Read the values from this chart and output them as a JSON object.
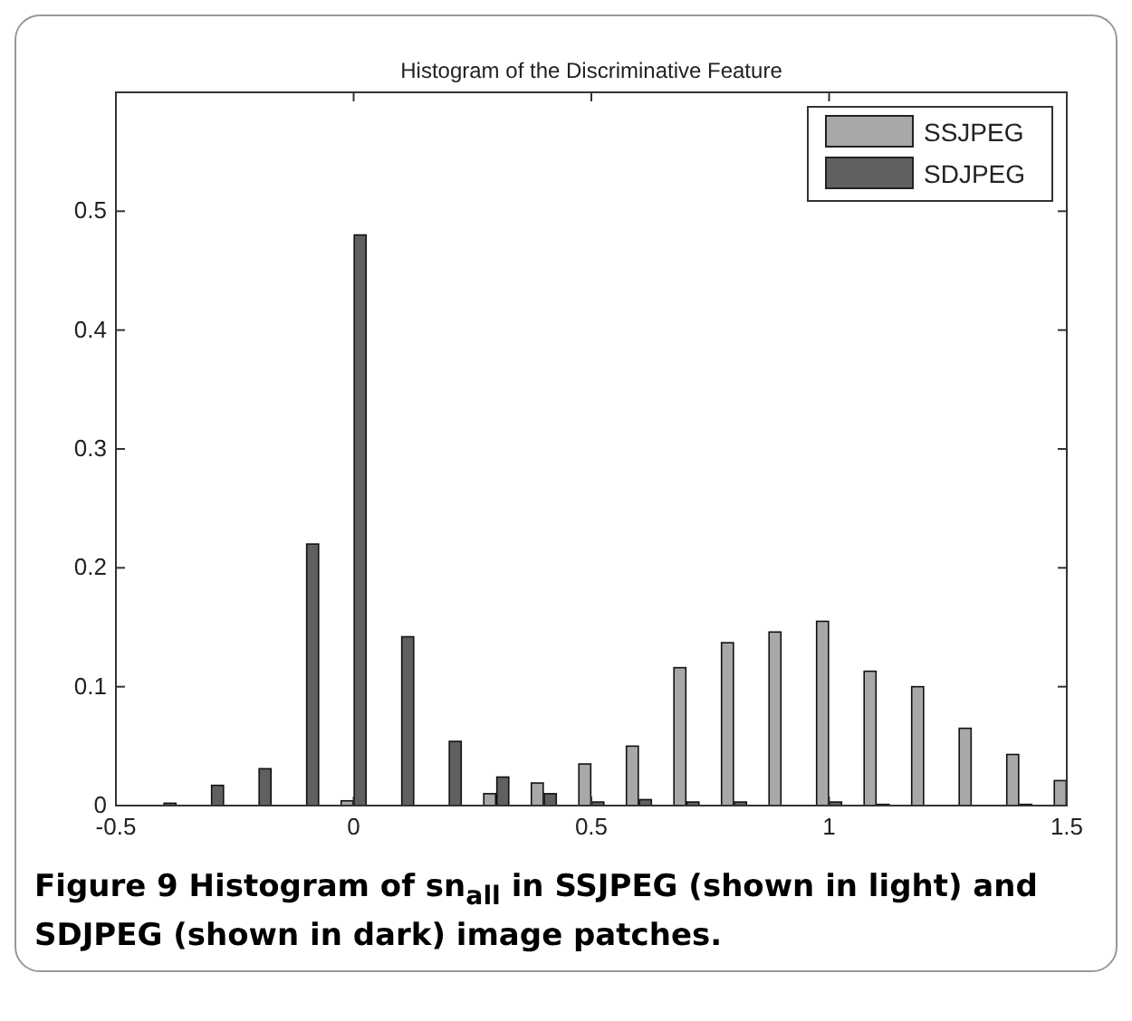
{
  "chart_data": {
    "type": "bar",
    "title": "Histogram of the Discriminative Feature",
    "x": [
      -0.4,
      -0.3,
      -0.2,
      -0.1,
      0,
      0.1,
      0.2,
      0.3,
      0.4,
      0.5,
      0.6,
      0.7,
      0.8,
      0.9,
      1,
      1.1,
      1.2,
      1.3,
      1.4,
      1.5
    ],
    "series": [
      {
        "name": "SSJPEG",
        "color": "#a8a8a8",
        "values": [
          0,
          0,
          0,
          0,
          0.004,
          0,
          0,
          0.01,
          0.019,
          0.035,
          0.05,
          0.116,
          0.137,
          0.146,
          0.155,
          0.113,
          0.1,
          0.065,
          0.043,
          0.021
        ]
      },
      {
        "name": "SDJPEG",
        "color": "#606060",
        "values": [
          0.002,
          0.017,
          0.031,
          0.22,
          0.48,
          0.142,
          0.054,
          0.024,
          0.01,
          0.003,
          0.005,
          0.003,
          0.003,
          0,
          0.003,
          0.001,
          0,
          0,
          0.001,
          0
        ]
      }
    ],
    "xlim": [
      -0.5,
      1.5
    ],
    "xticks": [
      -0.5,
      0,
      0.5,
      1,
      1.5
    ],
    "ylim": [
      0,
      0.6
    ],
    "yticks": [
      0,
      0.1,
      0.2,
      0.3,
      0.4,
      0.5
    ],
    "legend": "top right",
    "grid": false,
    "annotations": [
      "Figure 9 Histogram of sn$_{all}$ in SSJPEG (shown in light) and SDJPEG (shown in dark) image patches."
    ]
  }
}
